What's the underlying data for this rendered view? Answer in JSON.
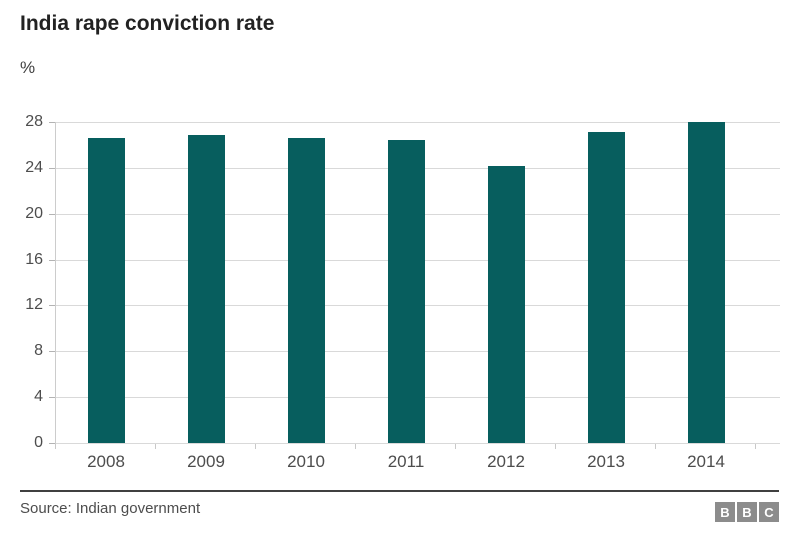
{
  "header": {
    "title": "India rape conviction rate",
    "unit": "%"
  },
  "chart_data": {
    "type": "bar",
    "title": "India rape conviction rate",
    "ylabel": "%",
    "xlabel": "",
    "categories": [
      "2008",
      "2009",
      "2010",
      "2011",
      "2012",
      "2013",
      "2014"
    ],
    "values": [
      26.6,
      26.9,
      26.6,
      26.4,
      24.2,
      27.1,
      28.0
    ],
    "ylim": [
      0,
      28
    ],
    "yticks": [
      0,
      4,
      8,
      12,
      16,
      20,
      24,
      28
    ],
    "grid": true,
    "legend": "none",
    "bar_color": "#075e5e",
    "gridline_color": "#d9d9d9",
    "axis_color": "#cccccc",
    "label_color": "#4d4d4d"
  },
  "footer": {
    "source": "Source: Indian government",
    "bbc_letters": [
      "B",
      "B",
      "C"
    ]
  }
}
